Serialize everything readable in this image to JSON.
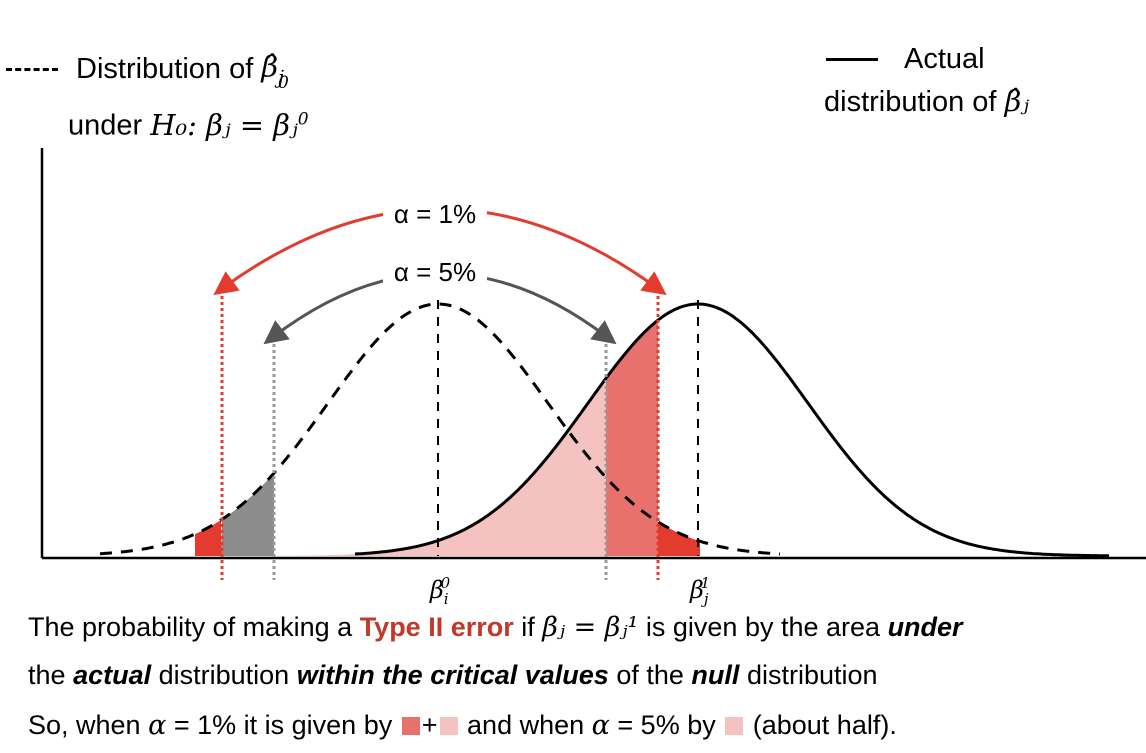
{
  "legend": {
    "null_line1": "Distribution of",
    "null_sym": "β̂",
    "null_sub": "j",
    "null_sup": "0",
    "null_line2_prefix": "under",
    "null_hyp": "H₀: βⱼ = βⱼ",
    "actual_line1": "Actual",
    "actual_line2": "distribution of",
    "actual_sym": "β̂ⱼ"
  },
  "labels": {
    "alpha1": "α = 1%",
    "alpha5": "α = 5%",
    "beta0_base": "β",
    "beta0_sub": "i",
    "beta0_sup": "0",
    "beta1_base": "β",
    "beta1_sub": "j",
    "beta1_sup": "1"
  },
  "caption": {
    "l1_a": "The probability of making a",
    "l1_b": "Type II error",
    "l1_c": "if",
    "l1_math": "βⱼ = βⱼ¹",
    "l1_d": "is given by the area",
    "l1_e": "under",
    "l2_a": "the",
    "l2_b": "actual",
    "l2_c": "distribution",
    "l2_d": "within the critical values",
    "l2_e": "of the",
    "l2_f": "null",
    "l2_g": "distribution",
    "l3_a": "So, when",
    "l3_math1": "α",
    "l3_b": "= 1% it is given by",
    "l3_plus": "+",
    "l3_c": "and when",
    "l3_math2": "α",
    "l3_d": "= 5%  by",
    "l3_e": "(about half)."
  },
  "colors": {
    "red": "#e33b2e",
    "dark_fill": "#e8716e",
    "light_fill": "#f5c2c2",
    "gray_fill": "#8c8c8c",
    "gray_arrow": "#555555",
    "title": "#1f3b8f"
  }
}
